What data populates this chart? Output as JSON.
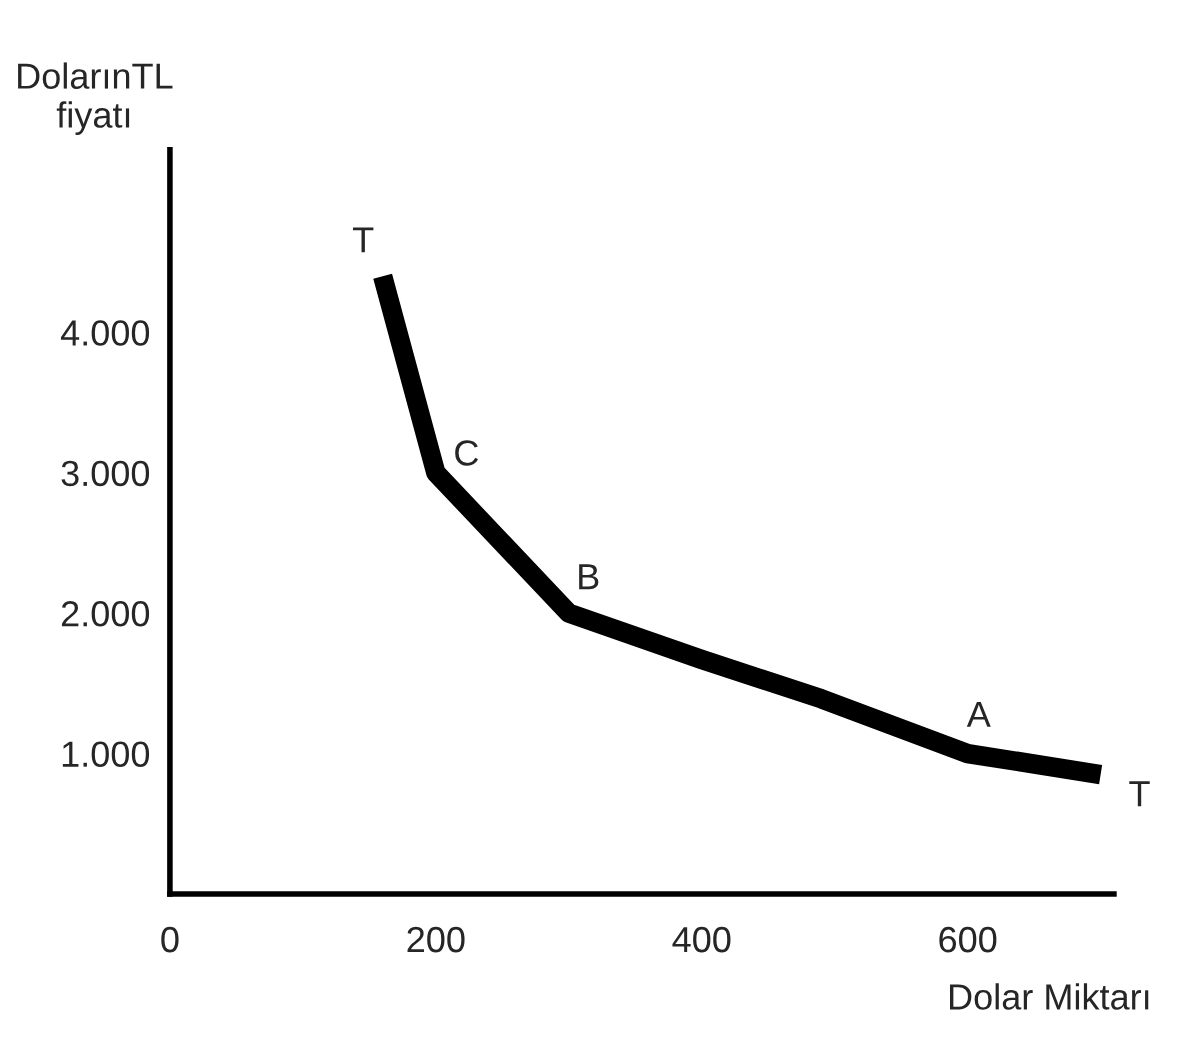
{
  "chart_data": {
    "type": "line",
    "xlabel": "Dolar Miktarı",
    "ylabel": "DolarınTL\nfiyatı",
    "x": [
      160,
      200,
      300,
      400,
      490,
      600,
      700
    ],
    "series": [
      {
        "color": "#000000",
        "values": [
          4400,
          3000,
          2000,
          1670,
          1390,
          1000,
          850
        ]
      }
    ],
    "xlim": [
      0,
      710
    ],
    "ylim": [
      0,
      5300
    ],
    "xticks": [
      0,
      200,
      400,
      600
    ],
    "yticks": [
      {
        "value": 1000,
        "label": "1.000"
      },
      {
        "value": 2000,
        "label": "2.000"
      },
      {
        "value": 3000,
        "label": "3.000"
      },
      {
        "value": 4000,
        "label": "4.000"
      }
    ],
    "annotations": [
      {
        "text": "T",
        "x": 160,
        "y": 4400
      },
      {
        "text": "C",
        "x": 200,
        "y": 3000
      },
      {
        "text": "B",
        "x": 300,
        "y": 2000
      },
      {
        "text": "A",
        "x": 600,
        "y": 1000
      },
      {
        "text": "T",
        "x": 700,
        "y": 850
      }
    ],
    "grid": false,
    "legend": false,
    "marker": "none",
    "line_style": "solid"
  }
}
